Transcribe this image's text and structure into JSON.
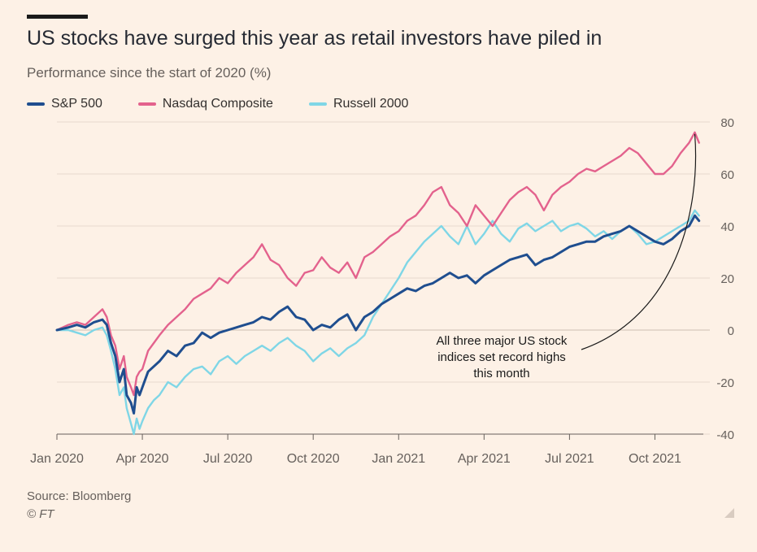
{
  "header": {
    "title": "US stocks have surged this year as retail investors have piled in",
    "subtitle": "Performance since the start of 2020 (%)"
  },
  "footer": {
    "source": "Source: Bloomberg",
    "copyright": "© FT"
  },
  "colors": {
    "background": "#fdf1e6",
    "sp500": "#1f4e8f",
    "nasdaq": "#e3628d",
    "russell": "#7fd6e6",
    "grid": "#e6d9ce"
  },
  "chart_data": {
    "type": "line",
    "title": "US stocks have surged this year as retail investors have piled in",
    "subtitle": "Performance since the start of 2020 (%)",
    "xlabel": "",
    "ylabel": "",
    "ylim": [
      -40,
      80
    ],
    "yticks": [
      80,
      60,
      40,
      20,
      0,
      -20,
      -40
    ],
    "y_axis_side": "right",
    "xticks": [
      {
        "month": 0,
        "label": "Jan 2020"
      },
      {
        "month": 3,
        "label": "Apr 2020"
      },
      {
        "month": 6,
        "label": "Jul 2020"
      },
      {
        "month": 9,
        "label": "Oct 2020"
      },
      {
        "month": 12,
        "label": "Jan 2021"
      },
      {
        "month": 15,
        "label": "Apr 2021"
      },
      {
        "month": 18,
        "label": "Jul 2021"
      },
      {
        "month": 21,
        "label": "Oct 2021"
      }
    ],
    "xlim": [
      0,
      22.7
    ],
    "grid": true,
    "legend_position": "top-left",
    "annotation": {
      "lines": [
        "All three major US stock",
        "indices set record highs",
        "this month"
      ],
      "target_month": 22.4,
      "target_value": 76
    },
    "series": [
      {
        "name": "S&P 500",
        "color": "#1f4e8f",
        "x": [
          0,
          0.4,
          0.7,
          1.0,
          1.3,
          1.6,
          1.75,
          1.9,
          2.05,
          2.2,
          2.35,
          2.45,
          2.6,
          2.7,
          2.8,
          2.9,
          3.0,
          3.2,
          3.4,
          3.6,
          3.9,
          4.2,
          4.5,
          4.8,
          5.1,
          5.4,
          5.7,
          6.0,
          6.3,
          6.6,
          6.9,
          7.2,
          7.5,
          7.8,
          8.1,
          8.4,
          8.7,
          9.0,
          9.3,
          9.6,
          9.9,
          10.2,
          10.5,
          10.8,
          11.1,
          11.4,
          11.7,
          12.0,
          12.3,
          12.6,
          12.9,
          13.2,
          13.5,
          13.8,
          14.1,
          14.4,
          14.7,
          15.0,
          15.3,
          15.6,
          15.9,
          16.2,
          16.5,
          16.8,
          17.1,
          17.4,
          17.7,
          18.0,
          18.3,
          18.6,
          18.9,
          19.2,
          19.5,
          19.8,
          20.1,
          20.4,
          20.7,
          21.0,
          21.3,
          21.6,
          21.9,
          22.2,
          22.4,
          22.55
        ],
        "values": [
          0,
          1,
          2,
          1,
          3,
          4,
          2,
          -5,
          -10,
          -20,
          -15,
          -25,
          -28,
          -32,
          -22,
          -25,
          -22,
          -16,
          -14,
          -12,
          -8,
          -10,
          -6,
          -5,
          -1,
          -3,
          -1,
          0,
          1,
          2,
          3,
          5,
          4,
          7,
          9,
          5,
          4,
          0,
          2,
          1,
          4,
          6,
          0,
          5,
          7,
          10,
          12,
          14,
          16,
          15,
          17,
          18,
          20,
          22,
          20,
          21,
          18,
          21,
          23,
          25,
          27,
          28,
          29,
          25,
          27,
          28,
          30,
          32,
          33,
          34,
          34,
          36,
          37,
          38,
          40,
          38,
          36,
          34,
          33,
          35,
          38,
          40,
          44,
          42
        ]
      },
      {
        "name": "Nasdaq Composite",
        "color": "#e3628d",
        "x": [
          0,
          0.4,
          0.7,
          1.0,
          1.3,
          1.6,
          1.75,
          1.9,
          2.05,
          2.2,
          2.35,
          2.45,
          2.6,
          2.7,
          2.8,
          2.9,
          3.0,
          3.2,
          3.4,
          3.6,
          3.9,
          4.2,
          4.5,
          4.8,
          5.1,
          5.4,
          5.7,
          6.0,
          6.3,
          6.6,
          6.9,
          7.2,
          7.5,
          7.8,
          8.1,
          8.4,
          8.7,
          9.0,
          9.3,
          9.6,
          9.9,
          10.2,
          10.5,
          10.8,
          11.1,
          11.4,
          11.7,
          12.0,
          12.3,
          12.6,
          12.9,
          13.2,
          13.5,
          13.8,
          14.1,
          14.4,
          14.7,
          15.0,
          15.3,
          15.6,
          15.9,
          16.2,
          16.5,
          16.8,
          17.1,
          17.4,
          17.7,
          18.0,
          18.3,
          18.6,
          18.9,
          19.2,
          19.5,
          19.8,
          20.1,
          20.4,
          20.7,
          21.0,
          21.3,
          21.6,
          21.9,
          22.2,
          22.4,
          22.55
        ],
        "values": [
          0,
          2,
          3,
          2,
          5,
          8,
          5,
          -2,
          -6,
          -15,
          -10,
          -18,
          -22,
          -25,
          -18,
          -16,
          -15,
          -8,
          -5,
          -2,
          2,
          5,
          8,
          12,
          14,
          16,
          20,
          18,
          22,
          25,
          28,
          33,
          27,
          25,
          20,
          17,
          22,
          23,
          28,
          24,
          22,
          26,
          20,
          28,
          30,
          33,
          36,
          38,
          42,
          44,
          48,
          53,
          55,
          48,
          45,
          40,
          48,
          44,
          40,
          45,
          50,
          53,
          55,
          52,
          46,
          52,
          55,
          57,
          60,
          62,
          61,
          63,
          65,
          67,
          70,
          68,
          64,
          60,
          60,
          63,
          68,
          72,
          76,
          72
        ]
      },
      {
        "name": "Russell 2000",
        "color": "#7fd6e6",
        "x": [
          0,
          0.4,
          0.7,
          1.0,
          1.3,
          1.6,
          1.75,
          1.9,
          2.05,
          2.2,
          2.35,
          2.45,
          2.6,
          2.7,
          2.8,
          2.9,
          3.0,
          3.2,
          3.4,
          3.6,
          3.9,
          4.2,
          4.5,
          4.8,
          5.1,
          5.4,
          5.7,
          6.0,
          6.3,
          6.6,
          6.9,
          7.2,
          7.5,
          7.8,
          8.1,
          8.4,
          8.7,
          9.0,
          9.3,
          9.6,
          9.9,
          10.2,
          10.5,
          10.8,
          11.1,
          11.4,
          11.7,
          12.0,
          12.3,
          12.6,
          12.9,
          13.2,
          13.5,
          13.8,
          14.1,
          14.4,
          14.7,
          15.0,
          15.3,
          15.6,
          15.9,
          16.2,
          16.5,
          16.8,
          17.1,
          17.4,
          17.7,
          18.0,
          18.3,
          18.6,
          18.9,
          19.2,
          19.5,
          19.8,
          20.1,
          20.4,
          20.7,
          21.0,
          21.3,
          21.6,
          21.9,
          22.2,
          22.4,
          22.55
        ],
        "values": [
          0,
          0,
          -1,
          -2,
          0,
          1,
          -2,
          -8,
          -15,
          -25,
          -22,
          -30,
          -36,
          -40,
          -34,
          -38,
          -35,
          -30,
          -27,
          -25,
          -20,
          -22,
          -18,
          -15,
          -14,
          -17,
          -12,
          -10,
          -13,
          -10,
          -8,
          -6,
          -8,
          -5,
          -3,
          -6,
          -8,
          -12,
          -9,
          -7,
          -10,
          -7,
          -5,
          -2,
          5,
          10,
          15,
          20,
          26,
          30,
          34,
          37,
          40,
          36,
          33,
          40,
          33,
          37,
          42,
          37,
          34,
          39,
          41,
          38,
          40,
          42,
          38,
          40,
          41,
          39,
          36,
          38,
          35,
          38,
          40,
          37,
          33,
          34,
          36,
          38,
          40,
          42,
          46,
          44
        ]
      }
    ]
  }
}
